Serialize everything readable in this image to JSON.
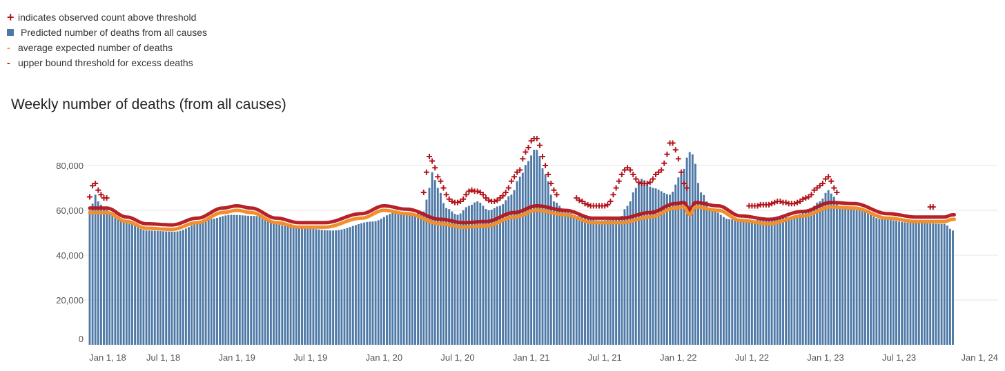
{
  "legend": {
    "plus": "indicates observed count above threshold",
    "bars": "Predicted number of deaths from all causes",
    "average": "average expected number of deaths",
    "upper": "upper bound threshold for excess deaths"
  },
  "colors": {
    "bar": "#4e79a7",
    "average": "#f28e2b",
    "upper": "#b2161d",
    "plus": "#b2161d",
    "grid": "#e6e6e6"
  },
  "chart_data": {
    "type": "bar",
    "title": "Weekly number of deaths (from all causes)",
    "xlabel": "",
    "ylabel": "",
    "ylim": [
      0,
      90000
    ],
    "y_ticks": [
      0,
      20000,
      40000,
      60000,
      80000
    ],
    "y_tick_labels": [
      "0",
      "20,000",
      "40,000",
      "60,000",
      "80,000"
    ],
    "x_tick_labels": [
      "Jan 1, 18",
      "Jul 1, 18",
      "Jan 1, 19",
      "Jul 1, 19",
      "Jan 1, 20",
      "Jul 1, 20",
      "Jan 1, 21",
      "Jul 1, 21",
      "Jan 1, 22",
      "Jul 1, 22",
      "Jan 1, 23",
      "Jul 1, 23",
      "Jan 1, 24"
    ],
    "x_tick_weeks": [
      0,
      26,
      52,
      78,
      104,
      130,
      156,
      182,
      208,
      234,
      260,
      286,
      312
    ],
    "weeks": 306,
    "series": [
      {
        "name": "Predicted number of deaths from all causes",
        "kind": "bar",
        "knots": [
          [
            0,
            60000
          ],
          [
            1,
            63000
          ],
          [
            2,
            67000
          ],
          [
            3,
            64000
          ],
          [
            5,
            61000
          ],
          [
            8,
            58000
          ],
          [
            14,
            54000
          ],
          [
            20,
            51000
          ],
          [
            30,
            50500
          ],
          [
            42,
            56000
          ],
          [
            50,
            58000
          ],
          [
            58,
            57500
          ],
          [
            70,
            53000
          ],
          [
            86,
            51000
          ],
          [
            100,
            55000
          ],
          [
            108,
            59000
          ],
          [
            114,
            58000
          ],
          [
            118,
            59500
          ],
          [
            120,
            70000
          ],
          [
            121,
            77000
          ],
          [
            123,
            70000
          ],
          [
            126,
            61000
          ],
          [
            130,
            58000
          ],
          [
            134,
            62000
          ],
          [
            137,
            64000
          ],
          [
            141,
            60000
          ],
          [
            145,
            62000
          ],
          [
            149,
            67000
          ],
          [
            152,
            75000
          ],
          [
            155,
            82000
          ],
          [
            157,
            87000
          ],
          [
            158,
            87000
          ],
          [
            161,
            76000
          ],
          [
            164,
            64000
          ],
          [
            168,
            60000
          ],
          [
            172,
            57500
          ],
          [
            180,
            55500
          ],
          [
            187,
            56000
          ],
          [
            190,
            62000
          ],
          [
            193,
            70000
          ],
          [
            195,
            74000
          ],
          [
            199,
            70000
          ],
          [
            205,
            67000
          ],
          [
            209,
            76000
          ],
          [
            212,
            86000
          ],
          [
            213,
            85000
          ],
          [
            216,
            68000
          ],
          [
            220,
            60000
          ],
          [
            226,
            56000
          ],
          [
            232,
            55000
          ],
          [
            238,
            56000
          ],
          [
            248,
            57000
          ],
          [
            254,
            60000
          ],
          [
            258,
            64000
          ],
          [
            261,
            69000
          ],
          [
            263,
            66000
          ],
          [
            265,
            61000
          ],
          [
            272,
            60000
          ],
          [
            280,
            56000
          ],
          [
            290,
            54500
          ],
          [
            302,
            54000
          ],
          [
            305,
            51000
          ]
        ]
      },
      {
        "name": "average expected number of deaths",
        "kind": "line",
        "knots": [
          [
            0,
            59000
          ],
          [
            6,
            59000
          ],
          [
            13,
            55000
          ],
          [
            20,
            52000
          ],
          [
            29,
            51500
          ],
          [
            38,
            54500
          ],
          [
            47,
            59000
          ],
          [
            52,
            60000
          ],
          [
            57,
            59000
          ],
          [
            66,
            54500
          ],
          [
            74,
            52500
          ],
          [
            83,
            52500
          ],
          [
            96,
            56500
          ],
          [
            104,
            60000
          ],
          [
            112,
            58500
          ],
          [
            124,
            54000
          ],
          [
            132,
            52500
          ],
          [
            140,
            53000
          ],
          [
            150,
            57000
          ],
          [
            158,
            60000
          ],
          [
            168,
            58000
          ],
          [
            178,
            54500
          ],
          [
            188,
            54500
          ],
          [
            198,
            57000
          ],
          [
            207,
            61000
          ],
          [
            210,
            61500
          ],
          [
            212,
            58000
          ],
          [
            214,
            61500
          ],
          [
            222,
            60000
          ],
          [
            230,
            55500
          ],
          [
            240,
            54000
          ],
          [
            252,
            57500
          ],
          [
            262,
            61500
          ],
          [
            270,
            61000
          ],
          [
            282,
            56500
          ],
          [
            292,
            55000
          ],
          [
            302,
            55000
          ],
          [
            305,
            56000
          ]
        ]
      },
      {
        "name": "upper bound threshold for excess deaths",
        "kind": "line",
        "knots": [
          [
            0,
            61000
          ],
          [
            6,
            61000
          ],
          [
            13,
            57000
          ],
          [
            20,
            54000
          ],
          [
            29,
            53500
          ],
          [
            38,
            56500
          ],
          [
            47,
            61000
          ],
          [
            52,
            62000
          ],
          [
            57,
            61000
          ],
          [
            66,
            56500
          ],
          [
            74,
            54500
          ],
          [
            83,
            54500
          ],
          [
            96,
            58500
          ],
          [
            104,
            62000
          ],
          [
            112,
            60500
          ],
          [
            124,
            56000
          ],
          [
            132,
            54500
          ],
          [
            140,
            55000
          ],
          [
            150,
            59000
          ],
          [
            158,
            62000
          ],
          [
            168,
            60000
          ],
          [
            178,
            56500
          ],
          [
            188,
            56500
          ],
          [
            198,
            59000
          ],
          [
            207,
            63000
          ],
          [
            210,
            63500
          ],
          [
            212,
            60000
          ],
          [
            214,
            63500
          ],
          [
            222,
            62000
          ],
          [
            230,
            57500
          ],
          [
            240,
            56000
          ],
          [
            252,
            59500
          ],
          [
            262,
            63500
          ],
          [
            270,
            63000
          ],
          [
            282,
            58500
          ],
          [
            292,
            57000
          ],
          [
            302,
            57000
          ],
          [
            305,
            58000
          ]
        ]
      },
      {
        "name": "indicates observed count above threshold",
        "kind": "marker",
        "points": [
          [
            0,
            66000
          ],
          [
            1,
            71000
          ],
          [
            2,
            72000
          ],
          [
            3,
            69000
          ],
          [
            4,
            67000
          ],
          [
            5,
            65500
          ],
          [
            6,
            65500
          ],
          [
            118,
            68000
          ],
          [
            119,
            77000
          ],
          [
            120,
            84000
          ],
          [
            121,
            82000
          ],
          [
            122,
            79000
          ],
          [
            123,
            75000
          ],
          [
            124,
            73000
          ],
          [
            125,
            70000
          ],
          [
            126,
            67000
          ],
          [
            127,
            65000
          ],
          [
            128,
            64000
          ],
          [
            129,
            63500
          ],
          [
            130,
            63500
          ],
          [
            131,
            64000
          ],
          [
            132,
            65000
          ],
          [
            133,
            67000
          ],
          [
            134,
            68500
          ],
          [
            135,
            69000
          ],
          [
            136,
            68500
          ],
          [
            137,
            68500
          ],
          [
            138,
            68000
          ],
          [
            139,
            67000
          ],
          [
            140,
            65500
          ],
          [
            141,
            64500
          ],
          [
            142,
            64000
          ],
          [
            143,
            64000
          ],
          [
            144,
            64500
          ],
          [
            145,
            65500
          ],
          [
            146,
            66500
          ],
          [
            147,
            68000
          ],
          [
            148,
            70000
          ],
          [
            149,
            73000
          ],
          [
            150,
            75000
          ],
          [
            151,
            77000
          ],
          [
            152,
            78000
          ],
          [
            153,
            83000
          ],
          [
            154,
            86000
          ],
          [
            155,
            88000
          ],
          [
            156,
            91000
          ],
          [
            157,
            92000
          ],
          [
            158,
            92000
          ],
          [
            159,
            89000
          ],
          [
            160,
            84000
          ],
          [
            161,
            80000
          ],
          [
            162,
            76000
          ],
          [
            163,
            72000
          ],
          [
            164,
            69000
          ],
          [
            165,
            67000
          ],
          [
            172,
            65500
          ],
          [
            173,
            64500
          ],
          [
            174,
            64000
          ],
          [
            175,
            63000
          ],
          [
            176,
            62500
          ],
          [
            177,
            62000
          ],
          [
            178,
            62000
          ],
          [
            179,
            62000
          ],
          [
            180,
            62000
          ],
          [
            181,
            62000
          ],
          [
            182,
            62000
          ],
          [
            183,
            62500
          ],
          [
            184,
            64000
          ],
          [
            185,
            67000
          ],
          [
            186,
            70000
          ],
          [
            187,
            73000
          ],
          [
            188,
            76000
          ],
          [
            189,
            78000
          ],
          [
            190,
            79000
          ],
          [
            191,
            78000
          ],
          [
            192,
            76000
          ],
          [
            193,
            74000
          ],
          [
            194,
            72500
          ],
          [
            195,
            72000
          ],
          [
            196,
            72000
          ],
          [
            197,
            72000
          ],
          [
            198,
            72500
          ],
          [
            199,
            74000
          ],
          [
            200,
            76000
          ],
          [
            201,
            77000
          ],
          [
            202,
            78000
          ],
          [
            203,
            81000
          ],
          [
            204,
            85000
          ],
          [
            205,
            90000
          ],
          [
            206,
            90000
          ],
          [
            207,
            87000
          ],
          [
            208,
            83000
          ],
          [
            209,
            77000
          ],
          [
            210,
            72000
          ],
          [
            211,
            70000
          ],
          [
            233,
            62000
          ],
          [
            234,
            62000
          ],
          [
            235,
            62000
          ],
          [
            236,
            62000
          ],
          [
            237,
            62500
          ],
          [
            238,
            62500
          ],
          [
            239,
            62500
          ],
          [
            240,
            62500
          ],
          [
            241,
            63000
          ],
          [
            242,
            63500
          ],
          [
            243,
            64000
          ],
          [
            244,
            64000
          ],
          [
            245,
            63500
          ],
          [
            246,
            63500
          ],
          [
            247,
            63000
          ],
          [
            248,
            63000
          ],
          [
            249,
            63000
          ],
          [
            250,
            63500
          ],
          [
            251,
            64000
          ],
          [
            252,
            65000
          ],
          [
            253,
            65500
          ],
          [
            254,
            66000
          ],
          [
            255,
            67000
          ],
          [
            256,
            69000
          ],
          [
            257,
            70000
          ],
          [
            258,
            71000
          ],
          [
            259,
            72000
          ],
          [
            260,
            74000
          ],
          [
            261,
            75000
          ],
          [
            262,
            73000
          ],
          [
            263,
            70000
          ],
          [
            264,
            68000
          ],
          [
            297,
            61500
          ],
          [
            298,
            61500
          ]
        ]
      }
    ]
  }
}
